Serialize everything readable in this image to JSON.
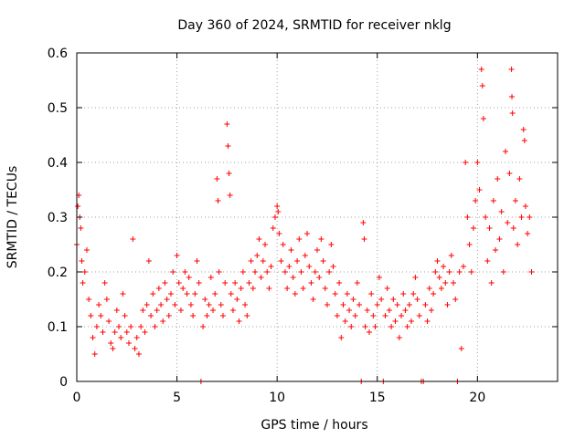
{
  "chart_data": {
    "type": "scatter",
    "title": "Day 360 of 2024, SRMTID for receiver nklg",
    "xlabel": "GPS time / hours",
    "ylabel": "SRMTID / TECUs",
    "xlim": [
      0,
      24
    ],
    "ylim": [
      0,
      0.6
    ],
    "x_ticks": [
      0,
      5,
      10,
      15,
      20
    ],
    "x_tick_labels": [
      "0",
      "5",
      "10",
      "15",
      "20"
    ],
    "y_ticks": [
      0,
      0.1,
      0.2,
      0.3,
      0.4,
      0.5,
      0.6
    ],
    "y_tick_labels": [
      "0",
      "0.1",
      "0.2",
      "0.3",
      "0.4",
      "0.5",
      "0.6"
    ],
    "grid": true,
    "marker": "+",
    "color": "#ff0000",
    "series": [
      {
        "name": "SRMTID",
        "points": [
          [
            0.0,
            0.25
          ],
          [
            0.05,
            0.32
          ],
          [
            0.1,
            0.34
          ],
          [
            0.15,
            0.3
          ],
          [
            0.2,
            0.28
          ],
          [
            0.25,
            0.22
          ],
          [
            0.3,
            0.18
          ],
          [
            0.4,
            0.2
          ],
          [
            0.5,
            0.24
          ],
          [
            0.6,
            0.15
          ],
          [
            0.7,
            0.12
          ],
          [
            0.8,
            0.08
          ],
          [
            0.9,
            0.05
          ],
          [
            1.0,
            0.1
          ],
          [
            1.1,
            0.14
          ],
          [
            1.2,
            0.12
          ],
          [
            1.3,
            0.09
          ],
          [
            1.4,
            0.18
          ],
          [
            1.5,
            0.15
          ],
          [
            1.6,
            0.11
          ],
          [
            1.7,
            0.07
          ],
          [
            1.8,
            0.06
          ],
          [
            1.9,
            0.09
          ],
          [
            2.0,
            0.13
          ],
          [
            2.1,
            0.1
          ],
          [
            2.2,
            0.08
          ],
          [
            2.3,
            0.16
          ],
          [
            2.4,
            0.12
          ],
          [
            2.5,
            0.09
          ],
          [
            2.6,
            0.07
          ],
          [
            2.7,
            0.1
          ],
          [
            2.8,
            0.26
          ],
          [
            2.9,
            0.06
          ],
          [
            3.0,
            0.08
          ],
          [
            3.1,
            0.05
          ],
          [
            3.2,
            0.1
          ],
          [
            3.3,
            0.13
          ],
          [
            3.4,
            0.09
          ],
          [
            3.5,
            0.14
          ],
          [
            3.6,
            0.22
          ],
          [
            3.7,
            0.12
          ],
          [
            3.8,
            0.16
          ],
          [
            3.9,
            0.1
          ],
          [
            4.0,
            0.13
          ],
          [
            4.1,
            0.17
          ],
          [
            4.2,
            0.14
          ],
          [
            4.3,
            0.11
          ],
          [
            4.4,
            0.18
          ],
          [
            4.5,
            0.15
          ],
          [
            4.6,
            0.12
          ],
          [
            4.7,
            0.16
          ],
          [
            4.8,
            0.2
          ],
          [
            4.9,
            0.14
          ],
          [
            5.0,
            0.23
          ],
          [
            5.1,
            0.18
          ],
          [
            5.2,
            0.13
          ],
          [
            5.3,
            0.17
          ],
          [
            5.4,
            0.2
          ],
          [
            5.5,
            0.16
          ],
          [
            5.6,
            0.19
          ],
          [
            5.7,
            0.14
          ],
          [
            5.8,
            0.12
          ],
          [
            5.9,
            0.16
          ],
          [
            6.0,
            0.22
          ],
          [
            6.1,
            0.18
          ],
          [
            6.2,
            0.0
          ],
          [
            6.3,
            0.1
          ],
          [
            6.4,
            0.15
          ],
          [
            6.5,
            0.12
          ],
          [
            6.6,
            0.14
          ],
          [
            6.7,
            0.19
          ],
          [
            6.8,
            0.13
          ],
          [
            6.9,
            0.16
          ],
          [
            7.0,
            0.37
          ],
          [
            7.05,
            0.33
          ],
          [
            7.1,
            0.2
          ],
          [
            7.2,
            0.14
          ],
          [
            7.3,
            0.12
          ],
          [
            7.4,
            0.18
          ],
          [
            7.5,
            0.47
          ],
          [
            7.55,
            0.43
          ],
          [
            7.6,
            0.38
          ],
          [
            7.65,
            0.34
          ],
          [
            7.7,
            0.16
          ],
          [
            7.8,
            0.13
          ],
          [
            7.9,
            0.18
          ],
          [
            8.0,
            0.15
          ],
          [
            8.1,
            0.11
          ],
          [
            8.2,
            0.17
          ],
          [
            8.3,
            0.2
          ],
          [
            8.4,
            0.14
          ],
          [
            8.5,
            0.12
          ],
          [
            8.6,
            0.18
          ],
          [
            8.7,
            0.22
          ],
          [
            8.8,
            0.17
          ],
          [
            8.9,
            0.2
          ],
          [
            9.0,
            0.23
          ],
          [
            9.1,
            0.26
          ],
          [
            9.2,
            0.19
          ],
          [
            9.3,
            0.22
          ],
          [
            9.4,
            0.25
          ],
          [
            9.5,
            0.2
          ],
          [
            9.6,
            0.17
          ],
          [
            9.7,
            0.21
          ],
          [
            9.8,
            0.28
          ],
          [
            9.9,
            0.3
          ],
          [
            10.0,
            0.32
          ],
          [
            10.05,
            0.31
          ],
          [
            10.1,
            0.27
          ],
          [
            10.2,
            0.22
          ],
          [
            10.3,
            0.25
          ],
          [
            10.4,
            0.2
          ],
          [
            10.5,
            0.17
          ],
          [
            10.6,
            0.21
          ],
          [
            10.7,
            0.24
          ],
          [
            10.8,
            0.19
          ],
          [
            10.9,
            0.16
          ],
          [
            11.0,
            0.22
          ],
          [
            11.1,
            0.26
          ],
          [
            11.2,
            0.2
          ],
          [
            11.3,
            0.17
          ],
          [
            11.4,
            0.23
          ],
          [
            11.5,
            0.27
          ],
          [
            11.6,
            0.21
          ],
          [
            11.7,
            0.18
          ],
          [
            11.8,
            0.15
          ],
          [
            11.9,
            0.2
          ],
          [
            12.0,
            0.24
          ],
          [
            12.1,
            0.19
          ],
          [
            12.2,
            0.26
          ],
          [
            12.3,
            0.22
          ],
          [
            12.4,
            0.17
          ],
          [
            12.5,
            0.14
          ],
          [
            12.6,
            0.2
          ],
          [
            12.7,
            0.25
          ],
          [
            12.8,
            0.21
          ],
          [
            12.9,
            0.16
          ],
          [
            13.0,
            0.12
          ],
          [
            13.1,
            0.18
          ],
          [
            13.2,
            0.08
          ],
          [
            13.3,
            0.14
          ],
          [
            13.4,
            0.11
          ],
          [
            13.5,
            0.16
          ],
          [
            13.6,
            0.13
          ],
          [
            13.7,
            0.1
          ],
          [
            13.8,
            0.15
          ],
          [
            13.9,
            0.12
          ],
          [
            14.0,
            0.18
          ],
          [
            14.1,
            0.14
          ],
          [
            14.2,
            0.0
          ],
          [
            14.3,
            0.29
          ],
          [
            14.35,
            0.26
          ],
          [
            14.4,
            0.1
          ],
          [
            14.5,
            0.13
          ],
          [
            14.6,
            0.09
          ],
          [
            14.7,
            0.16
          ],
          [
            14.8,
            0.12
          ],
          [
            14.9,
            0.1
          ],
          [
            15.0,
            0.14
          ],
          [
            15.1,
            0.19
          ],
          [
            15.2,
            0.15
          ],
          [
            15.3,
            0.0
          ],
          [
            15.4,
            0.12
          ],
          [
            15.5,
            0.17
          ],
          [
            15.6,
            0.13
          ],
          [
            15.7,
            0.1
          ],
          [
            15.8,
            0.15
          ],
          [
            15.9,
            0.11
          ],
          [
            16.0,
            0.14
          ],
          [
            16.1,
            0.08
          ],
          [
            16.2,
            0.12
          ],
          [
            16.3,
            0.16
          ],
          [
            16.4,
            0.13
          ],
          [
            16.5,
            0.1
          ],
          [
            16.6,
            0.14
          ],
          [
            16.7,
            0.11
          ],
          [
            16.8,
            0.16
          ],
          [
            16.9,
            0.19
          ],
          [
            17.0,
            0.15
          ],
          [
            17.1,
            0.12
          ],
          [
            17.2,
            0.0
          ],
          [
            17.3,
            0.0
          ],
          [
            17.4,
            0.14
          ],
          [
            17.5,
            0.11
          ],
          [
            17.6,
            0.17
          ],
          [
            17.7,
            0.13
          ],
          [
            17.8,
            0.16
          ],
          [
            17.9,
            0.2
          ],
          [
            18.0,
            0.22
          ],
          [
            18.1,
            0.19
          ],
          [
            18.2,
            0.17
          ],
          [
            18.3,
            0.21
          ],
          [
            18.4,
            0.18
          ],
          [
            18.5,
            0.14
          ],
          [
            18.6,
            0.2
          ],
          [
            18.7,
            0.23
          ],
          [
            18.8,
            0.18
          ],
          [
            18.9,
            0.15
          ],
          [
            19.0,
            0.0
          ],
          [
            19.1,
            0.2
          ],
          [
            19.2,
            0.06
          ],
          [
            19.3,
            0.21
          ],
          [
            19.4,
            0.4
          ],
          [
            19.5,
            0.3
          ],
          [
            19.6,
            0.25
          ],
          [
            19.7,
            0.2
          ],
          [
            19.8,
            0.28
          ],
          [
            19.9,
            0.33
          ],
          [
            20.0,
            0.4
          ],
          [
            20.1,
            0.35
          ],
          [
            20.2,
            0.57
          ],
          [
            20.25,
            0.54
          ],
          [
            20.3,
            0.48
          ],
          [
            20.4,
            0.3
          ],
          [
            20.5,
            0.22
          ],
          [
            20.6,
            0.28
          ],
          [
            20.7,
            0.18
          ],
          [
            20.8,
            0.33
          ],
          [
            20.9,
            0.24
          ],
          [
            21.0,
            0.37
          ],
          [
            21.1,
            0.26
          ],
          [
            21.2,
            0.31
          ],
          [
            21.3,
            0.2
          ],
          [
            21.4,
            0.42
          ],
          [
            21.5,
            0.29
          ],
          [
            21.6,
            0.38
          ],
          [
            21.7,
            0.57
          ],
          [
            21.72,
            0.52
          ],
          [
            21.75,
            0.49
          ],
          [
            21.8,
            0.28
          ],
          [
            21.9,
            0.33
          ],
          [
            22.0,
            0.25
          ],
          [
            22.1,
            0.37
          ],
          [
            22.2,
            0.3
          ],
          [
            22.3,
            0.46
          ],
          [
            22.35,
            0.44
          ],
          [
            22.4,
            0.32
          ],
          [
            22.5,
            0.27
          ],
          [
            22.6,
            0.3
          ],
          [
            22.7,
            0.2
          ]
        ]
      }
    ]
  }
}
